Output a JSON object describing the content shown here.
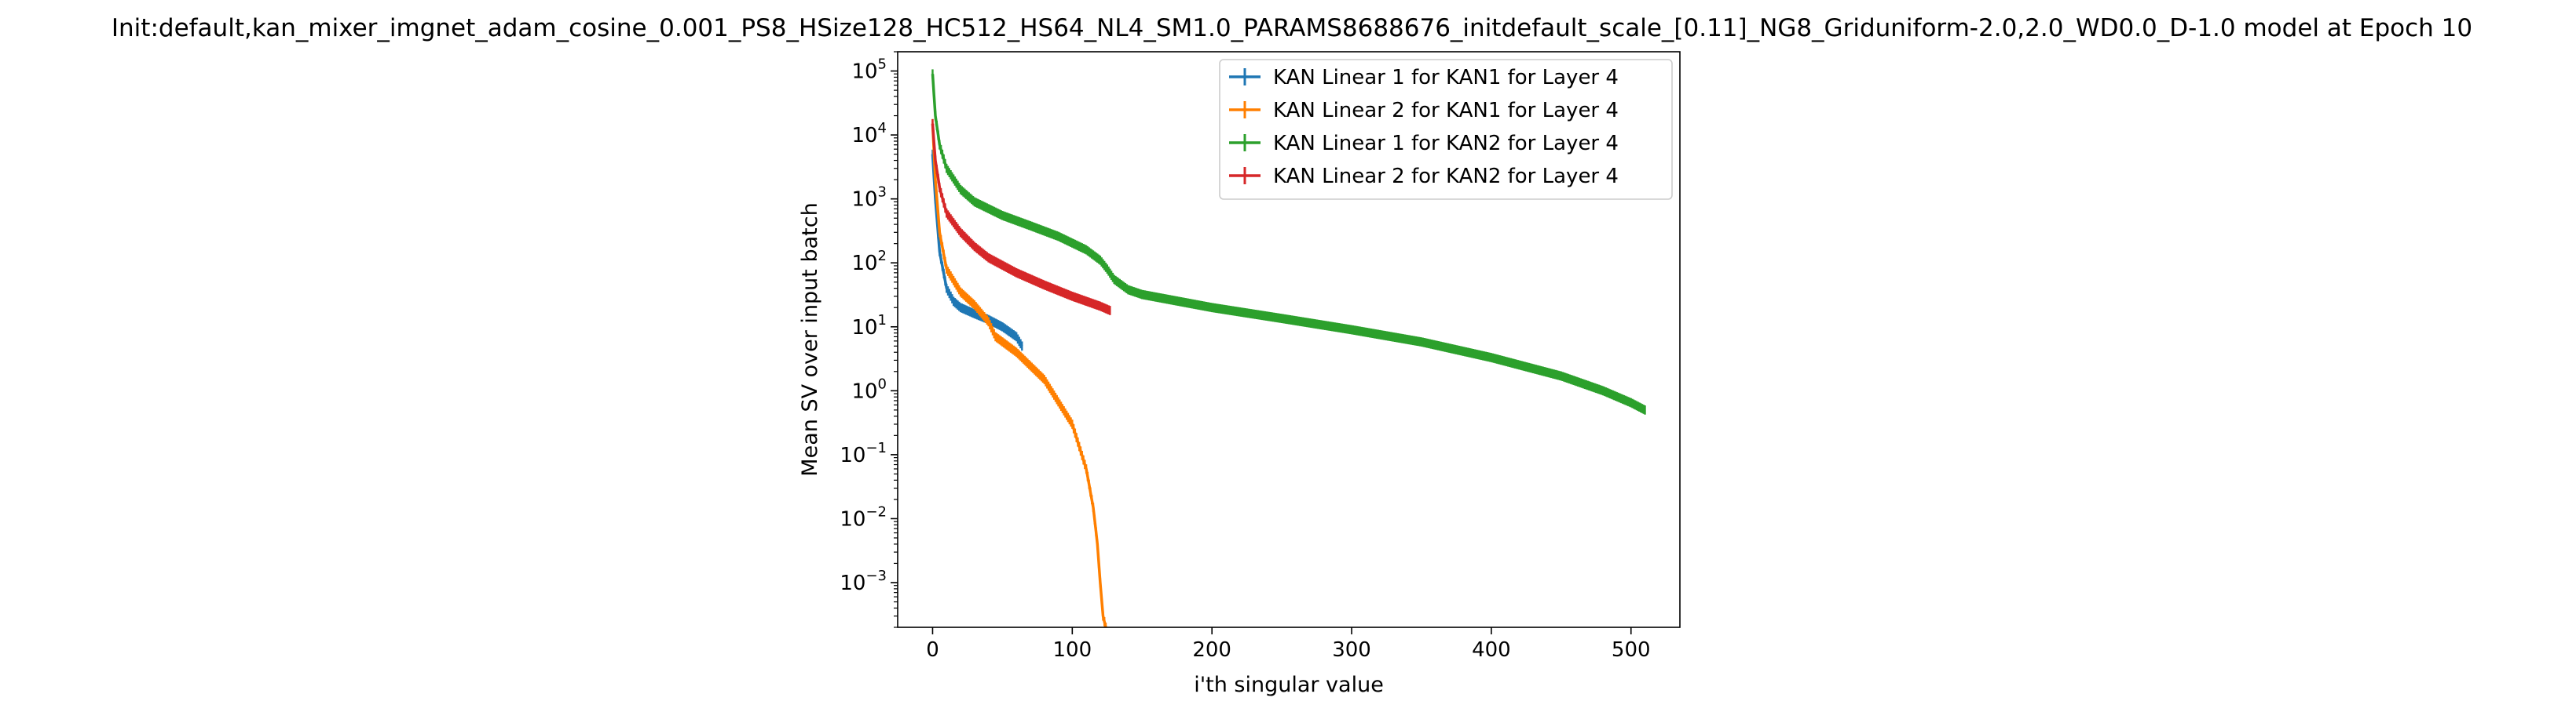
{
  "chart_data": {
    "type": "line",
    "title": "Init:default,kan_mixer_imgnet_adam_cosine_0.001_PS8_HSize128_HC512_HS64_NL4_SM1.0_PARAMS8688676_initdefault_scale_[0.11]_NG8_Griduniform-2.0,2.0_WD0.0_D-1.0 model at Epoch 10",
    "xlabel": "i'th singular value",
    "ylabel": "Mean SV over input batch",
    "xlim": [
      -25,
      535
    ],
    "ylim": [
      0.0002,
      200000
    ],
    "yscale": "log",
    "x_ticks": [
      0,
      100,
      200,
      300,
      400,
      500
    ],
    "x_tick_labels": [
      "0",
      "100",
      "200",
      "300",
      "400",
      "500"
    ],
    "y_ticks": [
      0.001,
      0.01,
      0.1,
      1,
      10,
      100,
      1000,
      10000,
      100000
    ],
    "y_tick_labels": [
      {
        "base": "10",
        "exp": "−3"
      },
      {
        "base": "10",
        "exp": "−2"
      },
      {
        "base": "10",
        "exp": "−1"
      },
      {
        "base": "10",
        "exp": "0"
      },
      {
        "base": "10",
        "exp": "1"
      },
      {
        "base": "10",
        "exp": "2"
      },
      {
        "base": "10",
        "exp": "3"
      },
      {
        "base": "10",
        "exp": "4"
      },
      {
        "base": "10",
        "exp": "5"
      }
    ],
    "grid": false,
    "legend_position": "top-right",
    "series": [
      {
        "name": "KAN Linear 1 for KAN1 for Layer 4",
        "color": "#1f77b4",
        "x": [
          0,
          2,
          5,
          10,
          15,
          20,
          30,
          40,
          50,
          60,
          64
        ],
        "y": [
          5000,
          1000,
          150,
          40,
          25,
          20,
          16,
          13,
          10,
          7,
          5
        ]
      },
      {
        "name": "KAN Linear 2 for KAN1 for Layer 4",
        "color": "#ff7f00",
        "x": [
          0,
          2,
          5,
          10,
          20,
          30,
          40,
          45,
          60,
          80,
          100,
          110,
          115,
          118,
          120,
          122,
          124
        ],
        "y": [
          15000,
          2000,
          300,
          80,
          35,
          22,
          12,
          7,
          4,
          1.5,
          0.3,
          0.06,
          0.015,
          0.004,
          0.001,
          0.0003,
          0.0002
        ]
      },
      {
        "name": "KAN Linear 1 for KAN2 for Layer 4",
        "color": "#2ca02c",
        "x": [
          0,
          2,
          5,
          10,
          20,
          30,
          50,
          70,
          90,
          110,
          120,
          125,
          130,
          140,
          150,
          200,
          250,
          300,
          350,
          400,
          450,
          480,
          500,
          510
        ],
        "y": [
          90000,
          20000,
          7000,
          3000,
          1400,
          900,
          550,
          380,
          260,
          160,
          110,
          80,
          55,
          38,
          32,
          20,
          13.5,
          9,
          5.8,
          3.3,
          1.7,
          1.0,
          0.65,
          0.5
        ]
      },
      {
        "name": "KAN Linear 2 for KAN2 for Layer 4",
        "color": "#d62728",
        "x": [
          0,
          2,
          5,
          10,
          20,
          30,
          40,
          60,
          80,
          100,
          120,
          127
        ],
        "y": [
          15000,
          4000,
          1500,
          600,
          300,
          180,
          120,
          70,
          45,
          30,
          21,
          18
        ]
      }
    ]
  }
}
